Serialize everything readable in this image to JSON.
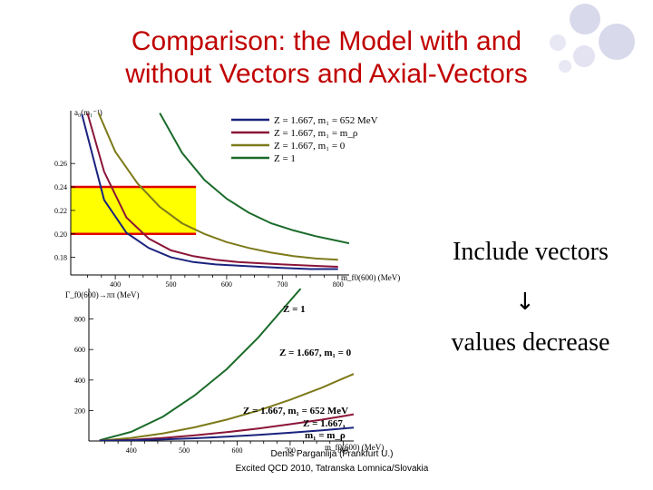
{
  "slide": {
    "title_line1": "Comparison: the Model with and",
    "title_line2": "without Vectors and Axial-Vectors",
    "side_text_1": "Include vectors",
    "arrow": "↓",
    "side_text_2": "values decrease",
    "footer_line1": "Denis Parganlija (Frankfurt U.)",
    "footer_line2": "Excited QCD 2010, Tatranska Lomnica/Slovakia"
  },
  "colors": {
    "title": "#c00000",
    "band_fill": "#ffff00",
    "band_edge": "#e00000",
    "navy": "#1a237e",
    "crimson": "#8b1538",
    "olive": "#7d7a1a",
    "green": "#1b6b2a",
    "deco_circle": "#d9d9ec"
  },
  "chart_data": [
    {
      "type": "line",
      "ylabel": "a₀(m₁⁻¹)",
      "xlabel": "m_f0(600) (MeV)",
      "xlim": [
        320,
        820
      ],
      "ylim": [
        0.165,
        0.305
      ],
      "xticks": [
        400,
        500,
        600,
        700,
        800
      ],
      "yticks": [
        0.18,
        0.2,
        0.22,
        0.24,
        0.26
      ],
      "ytick_labels": [
        "0.18",
        "0.20",
        "0.22",
        "0.24",
        "0.26"
      ],
      "band": {
        "y0": 0.2,
        "y1": 0.24,
        "x1": 545
      },
      "legend": [
        "Z = 1.667, m₁ = 652 MeV",
        "Z = 1.667, m₁ = m_ρ",
        "Z = 1.667, m₁ = 0",
        "Z = 1"
      ],
      "series": [
        {
          "name": "Z = 1.667, m₁ = 652 MeV",
          "color": "navy",
          "x": [
            340,
            380,
            420,
            460,
            500,
            540,
            580,
            620,
            660,
            700,
            750,
            800
          ],
          "y": [
            0.302,
            0.229,
            0.201,
            0.188,
            0.18,
            0.176,
            0.174,
            0.173,
            0.172,
            0.171,
            0.17,
            0.17
          ]
        },
        {
          "name": "Z = 1.667, m₁ = m_ρ",
          "color": "crimson",
          "x": [
            350,
            380,
            420,
            460,
            500,
            540,
            580,
            620,
            660,
            700,
            750,
            800
          ],
          "y": [
            0.303,
            0.253,
            0.214,
            0.196,
            0.186,
            0.181,
            0.178,
            0.176,
            0.175,
            0.174,
            0.173,
            0.172
          ]
        },
        {
          "name": "Z = 1.667, m₁ = 0",
          "color": "olive",
          "x": [
            370,
            400,
            440,
            480,
            520,
            560,
            600,
            640,
            680,
            720,
            760,
            800
          ],
          "y": [
            0.303,
            0.27,
            0.243,
            0.223,
            0.209,
            0.2,
            0.193,
            0.188,
            0.184,
            0.181,
            0.179,
            0.178
          ]
        },
        {
          "name": "Z = 1",
          "color": "green",
          "x": [
            480,
            520,
            560,
            600,
            640,
            680,
            720,
            760,
            800,
            820
          ],
          "y": [
            0.303,
            0.269,
            0.246,
            0.23,
            0.218,
            0.209,
            0.203,
            0.198,
            0.194,
            0.192
          ]
        }
      ]
    },
    {
      "type": "line",
      "ylabel": "Γ_f0(600)→ππ (MeV)",
      "xlabel": "m_f0(600) (MeV)",
      "xlim": [
        320,
        820
      ],
      "ylim": [
        0,
        1000
      ],
      "xticks": [
        400,
        500,
        600,
        700,
        800
      ],
      "yticks": [
        200,
        400,
        600,
        800
      ],
      "ytick_labels": [
        "200",
        "400",
        "600",
        "800"
      ],
      "annotations": [
        "Z = 1",
        "Z = 1.667, m₁ = 0",
        "Z = 1.667, m₁ = 652 MeV",
        "Z = 1.667,",
        "m₁ = m_ρ"
      ],
      "series": [
        {
          "name": "Z = 1",
          "color": "green",
          "x": [
            340,
            400,
            460,
            520,
            580,
            640,
            680,
            720
          ],
          "y": [
            5,
            60,
            160,
            300,
            470,
            680,
            840,
            1000
          ]
        },
        {
          "name": "Z = 1.667, m₁ = 0",
          "color": "olive",
          "x": [
            340,
            400,
            460,
            520,
            580,
            640,
            700,
            760,
            800,
            820
          ],
          "y": [
            2,
            20,
            50,
            90,
            140,
            200,
            270,
            350,
            410,
            440
          ]
        },
        {
          "name": "Z = 1.667, m₁ = m_ρ",
          "color": "crimson",
          "x": [
            340,
            400,
            460,
            520,
            580,
            640,
            700,
            760,
            800,
            820
          ],
          "y": [
            1,
            8,
            20,
            37,
            58,
            82,
            110,
            140,
            163,
            175
          ]
        },
        {
          "name": "Z = 1.667, m₁ = 652 MeV",
          "color": "navy",
          "x": [
            340,
            400,
            460,
            520,
            580,
            640,
            700,
            760,
            800,
            820
          ],
          "y": [
            1,
            4,
            10,
            18,
            28,
            40,
            54,
            70,
            82,
            88
          ]
        }
      ]
    }
  ]
}
